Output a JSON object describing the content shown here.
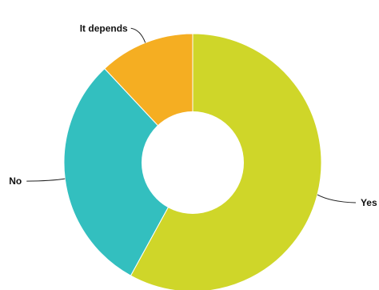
{
  "chart_data": {
    "type": "pie",
    "donut": true,
    "title": "",
    "labels": [
      "Yes",
      "No",
      "It depends"
    ],
    "values": [
      58,
      30,
      12
    ],
    "colors": [
      "#cfd629",
      "#33bfbf",
      "#f5ae22"
    ],
    "legend": "none",
    "label_placement": "outside-with-leader-lines"
  }
}
